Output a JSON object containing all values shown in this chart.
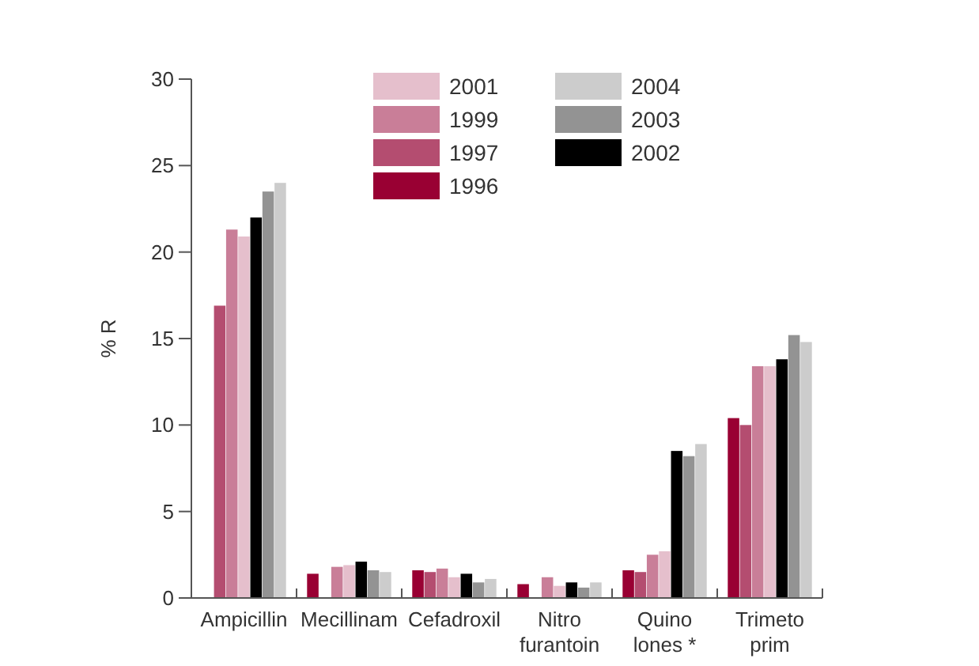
{
  "chart_data": {
    "type": "bar",
    "ylabel": "% R",
    "categories": [
      "Ampicillin",
      "Mecillinam",
      "Cefadroxil",
      "Nitro\nfurantoin",
      "Quino\nlones *",
      "Trimeto\nprim"
    ],
    "series": [
      {
        "name": "1996",
        "color": "#990033",
        "values": [
          null,
          1.4,
          1.6,
          0.8,
          1.6,
          10.4
        ]
      },
      {
        "name": "1997",
        "color": "#b44d70",
        "values": [
          16.9,
          null,
          1.5,
          null,
          1.5,
          10.0
        ]
      },
      {
        "name": "1999",
        "color": "#c97e98",
        "values": [
          21.3,
          1.8,
          1.7,
          1.2,
          2.5,
          13.4
        ]
      },
      {
        "name": "2001",
        "color": "#e5bfcc",
        "values": [
          20.9,
          1.9,
          1.2,
          0.7,
          2.7,
          13.4
        ]
      },
      {
        "name": "2002",
        "color": "#000000",
        "values": [
          22.0,
          2.1,
          1.4,
          0.9,
          8.5,
          13.8
        ]
      },
      {
        "name": "2003",
        "color": "#939393",
        "values": [
          23.5,
          1.6,
          0.9,
          0.6,
          8.2,
          15.2
        ]
      },
      {
        "name": "2004",
        "color": "#cccccc",
        "values": [
          24.0,
          1.5,
          1.1,
          0.9,
          8.9,
          14.8
        ]
      }
    ],
    "ylim": [
      0,
      30
    ],
    "yticks": [
      0,
      5,
      10,
      15,
      20,
      25,
      30
    ],
    "legend": "top",
    "grid": false
  }
}
